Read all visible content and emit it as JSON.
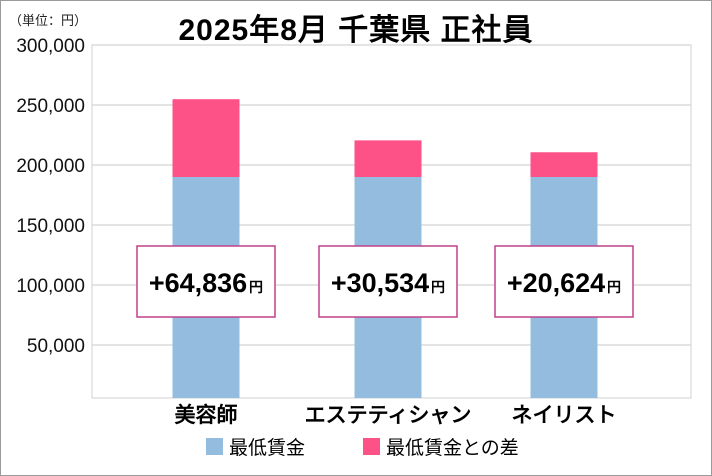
{
  "chart_data": {
    "type": "bar",
    "stacked": true,
    "title": "2025年8月 千葉県 正社員",
    "unit_label": "（単位：円）",
    "categories": [
      "美容師",
      "エステティシャン",
      "ネイリスト"
    ],
    "series": [
      {
        "name": "最低賃金",
        "color": "#93bcdf",
        "values": [
          190000,
          190000,
          190000
        ]
      },
      {
        "name": "最低賃金との差",
        "color": "#fd5288",
        "values": [
          64836,
          30534,
          20624
        ]
      }
    ],
    "data_labels": [
      "+64,836",
      "+30,534",
      "+20,624"
    ],
    "data_label_suffix": "円",
    "ylim": [
      0,
      300000
    ],
    "yticks": [
      50000,
      100000,
      150000,
      200000,
      250000,
      300000
    ],
    "ytick_labels": [
      "50,000",
      "100,000",
      "150,000",
      "200,000",
      "250,000",
      "300,000"
    ],
    "grid": true,
    "legend_position": "bottom"
  }
}
